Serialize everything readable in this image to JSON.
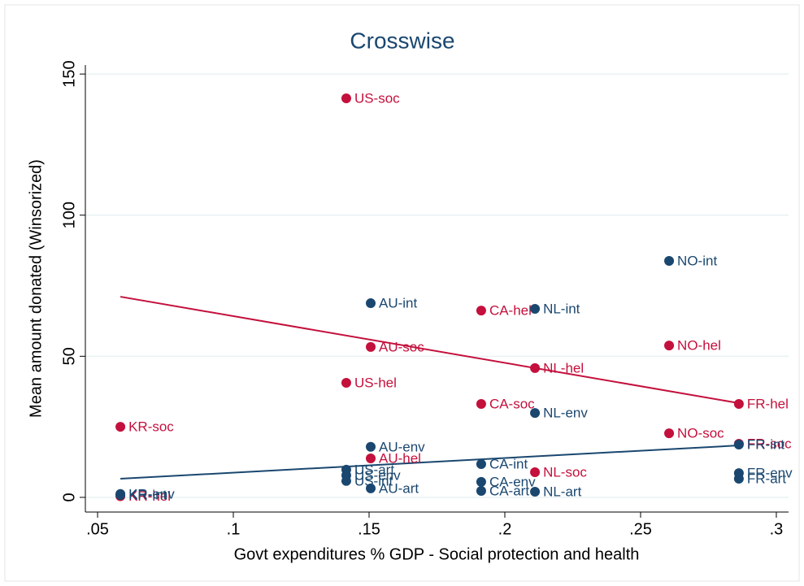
{
  "chart_data": {
    "type": "scatter",
    "title": "Crosswise",
    "xlabel": "Govt expenditures % GDP - Social protection and health",
    "ylabel": "Mean amount donated (Winsorized)",
    "xlim": [
      0.0455,
      0.3045
    ],
    "ylim": [
      -5.2,
      153.2
    ],
    "xticks": [
      {
        "value": 0.05,
        "label": ".05"
      },
      {
        "value": 0.1,
        "label": ".1"
      },
      {
        "value": 0.15,
        "label": ".15"
      },
      {
        "value": 0.2,
        "label": ".2"
      },
      {
        "value": 0.25,
        "label": ".25"
      },
      {
        "value": 0.3,
        "label": ".3"
      }
    ],
    "yticks": [
      0,
      50,
      100,
      150
    ],
    "grid": true,
    "series": [
      {
        "color": "#c4103c",
        "labels": [
          "US-soc",
          "US-hel",
          "KR-soc",
          "KR-hel",
          "AU-soc",
          "AU-hel",
          "CA-hel",
          "CA-soc",
          "NL-hel",
          "NL-soc",
          "NO-hel",
          "NO-soc",
          "FR-hel",
          "FR-soc"
        ],
        "x": [
          0.1416,
          0.1416,
          0.0584,
          0.0584,
          0.1506,
          0.1506,
          0.1913,
          0.1913,
          0.2111,
          0.2111,
          0.2605,
          0.2605,
          0.2862,
          0.2862
        ],
        "values": [
          141.4,
          40.6,
          25.0,
          0.4,
          53.3,
          13.8,
          66.2,
          33.1,
          45.8,
          8.9,
          53.8,
          22.7,
          33.1,
          19.0
        ],
        "fit": {
          "x": [
            0.0584,
            0.2862
          ],
          "y": [
            71.1,
            33.4
          ]
        }
      },
      {
        "color": "#1a476f",
        "labels": [
          "NO-int",
          "AU-int",
          "NL-int",
          "NL-env",
          "AU-env",
          "CA-int",
          "US-art",
          "US-env",
          "US-int",
          "CA-env",
          "AU-art",
          "CA-art",
          "NL-art",
          "FR-int",
          "FR-env",
          "FR-art",
          "KR-env",
          "KR-int"
        ],
        "x": [
          0.2605,
          0.1506,
          0.2111,
          0.2111,
          0.1506,
          0.1913,
          0.1416,
          0.1416,
          0.1416,
          0.1913,
          0.1506,
          0.1913,
          0.2111,
          0.2862,
          0.2862,
          0.2862,
          0.0584,
          0.0584
        ],
        "values": [
          83.8,
          68.8,
          66.8,
          29.9,
          17.9,
          11.8,
          9.8,
          7.8,
          5.8,
          5.5,
          3.2,
          2.3,
          2.0,
          18.7,
          8.6,
          6.6,
          1.2,
          0.8
        ],
        "fit": {
          "x": [
            0.0584,
            0.2862
          ],
          "y": [
            6.6,
            18.4
          ]
        }
      }
    ]
  }
}
